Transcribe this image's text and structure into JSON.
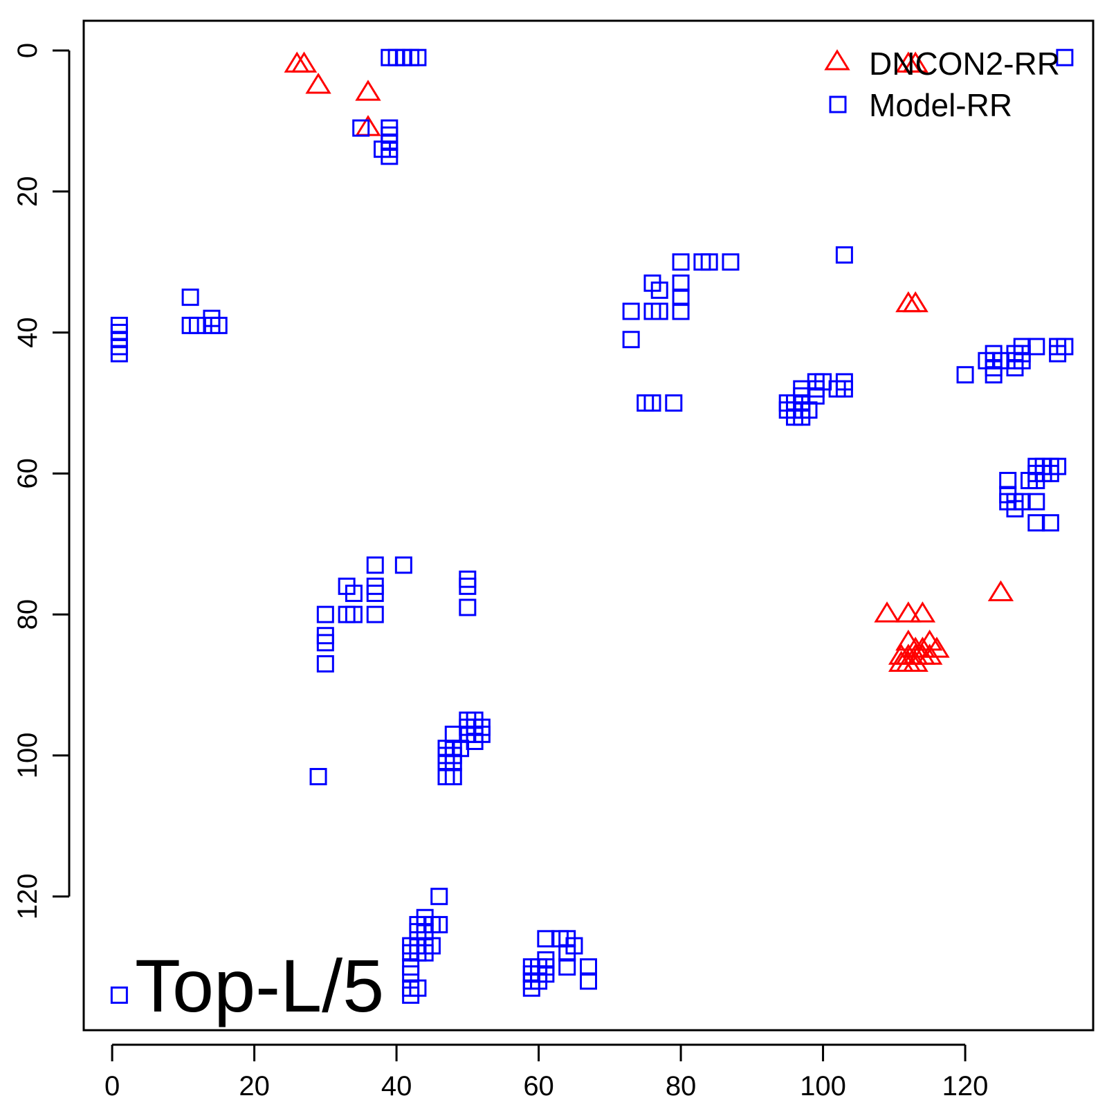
{
  "chart_data": {
    "type": "scatter",
    "title": "",
    "xlabel": "",
    "ylabel": "",
    "xlim": [
      -4,
      138
    ],
    "ylim": [
      0,
      140
    ],
    "y_reversed": true,
    "grid": false,
    "legend_position": "top-right",
    "annotation": "Top-L/5",
    "x_ticks": [
      0,
      20,
      40,
      60,
      80,
      100,
      120
    ],
    "y_ticks": [
      0,
      20,
      40,
      60,
      80,
      100,
      120
    ],
    "series": [
      {
        "name": "DNCON2-RR",
        "marker": "triangle",
        "color": "#ff0000",
        "points": [
          [
            26,
            2
          ],
          [
            27,
            2
          ],
          [
            29,
            5
          ],
          [
            36,
            6
          ],
          [
            36,
            11
          ],
          [
            112,
            2
          ],
          [
            113,
            2
          ],
          [
            112,
            36
          ],
          [
            113,
            36
          ],
          [
            125,
            77
          ],
          [
            109,
            80
          ],
          [
            112,
            80
          ],
          [
            114,
            80
          ],
          [
            112,
            84
          ],
          [
            113,
            85
          ],
          [
            114,
            85
          ],
          [
            115,
            84
          ],
          [
            116,
            85
          ],
          [
            111,
            86
          ],
          [
            112,
            86
          ],
          [
            113,
            86
          ],
          [
            114,
            86
          ],
          [
            115,
            86
          ],
          [
            111,
            87
          ],
          [
            112,
            87
          ],
          [
            113,
            87
          ]
        ]
      },
      {
        "name": "Model-RR",
        "marker": "square",
        "color": "#0000ff",
        "points": [
          [
            39,
            1
          ],
          [
            40,
            1
          ],
          [
            41,
            1
          ],
          [
            42,
            1
          ],
          [
            43,
            1
          ],
          [
            134,
            1
          ],
          [
            35,
            11
          ],
          [
            39,
            11
          ],
          [
            39,
            12
          ],
          [
            39,
            13
          ],
          [
            38,
            14
          ],
          [
            39,
            14
          ],
          [
            39,
            15
          ],
          [
            103,
            29
          ],
          [
            80,
            30
          ],
          [
            83,
            30
          ],
          [
            84,
            30
          ],
          [
            87,
            30
          ],
          [
            80,
            33
          ],
          [
            76,
            33
          ],
          [
            80,
            35
          ],
          [
            77,
            34
          ],
          [
            73,
            37
          ],
          [
            76,
            37
          ],
          [
            77,
            37
          ],
          [
            80,
            37
          ],
          [
            11,
            35
          ],
          [
            11,
            39
          ],
          [
            12,
            39
          ],
          [
            14,
            38
          ],
          [
            14,
            39
          ],
          [
            15,
            39
          ],
          [
            1,
            39
          ],
          [
            1,
            40
          ],
          [
            1,
            41
          ],
          [
            1,
            42
          ],
          [
            1,
            43
          ],
          [
            73,
            41
          ],
          [
            75,
            50
          ],
          [
            76,
            50
          ],
          [
            79,
            50
          ],
          [
            95,
            50
          ],
          [
            95,
            51
          ],
          [
            96,
            50
          ],
          [
            96,
            51
          ],
          [
            96,
            52
          ],
          [
            97,
            49
          ],
          [
            97,
            50
          ],
          [
            97,
            51
          ],
          [
            97,
            52
          ],
          [
            98,
            51
          ],
          [
            97,
            48
          ],
          [
            99,
            47
          ],
          [
            99,
            48
          ],
          [
            99,
            49
          ],
          [
            100,
            47
          ],
          [
            102,
            48
          ],
          [
            103,
            47
          ],
          [
            103,
            48
          ],
          [
            120,
            46
          ],
          [
            123,
            44
          ],
          [
            124,
            43
          ],
          [
            124,
            44
          ],
          [
            124,
            45
          ],
          [
            124,
            46
          ],
          [
            125,
            44
          ],
          [
            127,
            43
          ],
          [
            127,
            44
          ],
          [
            127,
            45
          ],
          [
            128,
            42
          ],
          [
            128,
            43
          ],
          [
            128,
            44
          ],
          [
            130,
            42
          ],
          [
            133,
            42
          ],
          [
            133,
            43
          ],
          [
            134,
            42
          ],
          [
            126,
            61
          ],
          [
            126,
            63
          ],
          [
            126,
            64
          ],
          [
            127,
            64
          ],
          [
            127,
            65
          ],
          [
            128,
            64
          ],
          [
            129,
            61
          ],
          [
            130,
            59
          ],
          [
            130,
            60
          ],
          [
            130,
            61
          ],
          [
            130,
            64
          ],
          [
            131,
            59
          ],
          [
            131,
            60
          ],
          [
            132,
            59
          ],
          [
            132,
            60
          ],
          [
            133,
            59
          ],
          [
            130,
            67
          ],
          [
            132,
            67
          ],
          [
            37,
            73
          ],
          [
            41,
            73
          ],
          [
            33,
            76
          ],
          [
            37,
            76
          ],
          [
            34,
            77
          ],
          [
            37,
            77
          ],
          [
            33,
            80
          ],
          [
            34,
            80
          ],
          [
            37,
            80
          ],
          [
            30,
            80
          ],
          [
            30,
            83
          ],
          [
            30,
            84
          ],
          [
            30,
            87
          ],
          [
            50,
            75
          ],
          [
            50,
            76
          ],
          [
            50,
            79
          ],
          [
            50,
            95
          ],
          [
            51,
            95
          ],
          [
            50,
            96
          ],
          [
            51,
            96
          ],
          [
            52,
            96
          ],
          [
            48,
            97
          ],
          [
            50,
            97
          ],
          [
            51,
            97
          ],
          [
            52,
            97
          ],
          [
            51,
            98
          ],
          [
            47,
            99
          ],
          [
            48,
            99
          ],
          [
            49,
            99
          ],
          [
            47,
            100
          ],
          [
            48,
            100
          ],
          [
            47,
            101
          ],
          [
            48,
            101
          ],
          [
            47,
            103
          ],
          [
            48,
            103
          ],
          [
            29,
            103
          ],
          [
            46,
            120
          ],
          [
            43,
            124
          ],
          [
            44,
            124
          ],
          [
            45,
            124
          ],
          [
            46,
            124
          ],
          [
            44,
            123
          ],
          [
            43,
            125
          ],
          [
            44,
            125
          ],
          [
            42,
            127
          ],
          [
            43,
            127
          ],
          [
            44,
            127
          ],
          [
            45,
            127
          ],
          [
            42,
            128
          ],
          [
            43,
            128
          ],
          [
            44,
            128
          ],
          [
            42,
            130
          ],
          [
            42,
            131
          ],
          [
            42,
            133
          ],
          [
            43,
            133
          ],
          [
            42,
            134
          ],
          [
            1,
            134
          ],
          [
            61,
            126
          ],
          [
            63,
            126
          ],
          [
            64,
            126
          ],
          [
            65,
            127
          ],
          [
            64,
            128
          ],
          [
            61,
            129
          ],
          [
            64,
            130
          ],
          [
            67,
            130
          ],
          [
            59,
            130
          ],
          [
            60,
            130
          ],
          [
            61,
            130
          ],
          [
            59,
            131
          ],
          [
            60,
            131
          ],
          [
            61,
            131
          ],
          [
            59,
            132
          ],
          [
            60,
            132
          ],
          [
            59,
            133
          ],
          [
            67,
            132
          ]
        ]
      }
    ]
  }
}
